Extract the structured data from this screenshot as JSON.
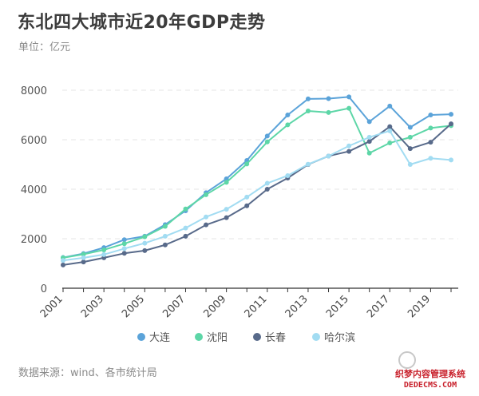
{
  "header": {
    "title": "东北四大城市近20年GDP走势",
    "subtitle": "单位：亿元"
  },
  "footer": {
    "source": "数据来源：wind、各市统计局"
  },
  "watermark": {
    "cn": "织梦内容管理系统",
    "en": "DEDECMS.COM"
  },
  "chart_data": {
    "type": "line",
    "x": [
      2001,
      2002,
      2003,
      2004,
      2005,
      2006,
      2007,
      2008,
      2009,
      2010,
      2011,
      2012,
      2013,
      2014,
      2015,
      2016,
      2017,
      2018,
      2019,
      2020
    ],
    "x_tick_labels": [
      "2001",
      "2003",
      "2005",
      "2007",
      "2009",
      "2011",
      "2013",
      "2015",
      "2017",
      "2019"
    ],
    "ylim": [
      0,
      8000
    ],
    "y_ticks": [
      "0",
      "2000",
      "4000",
      "6000",
      "8000"
    ],
    "grid": true,
    "legend_position": "bottom",
    "series": [
      {
        "name": "大连",
        "color": "#5ba3d9",
        "values": [
          1240,
          1400,
          1640,
          1960,
          2100,
          2570,
          3130,
          3860,
          4420,
          5160,
          6150,
          7000,
          7650,
          7660,
          7730,
          6730,
          7360,
          6500,
          7000,
          7030
        ]
      },
      {
        "name": "沈阳",
        "color": "#5dd6a7",
        "values": [
          1230,
          1370,
          1550,
          1800,
          2080,
          2500,
          3200,
          3780,
          4280,
          5020,
          5910,
          6600,
          7160,
          7100,
          7270,
          5460,
          5870,
          6100,
          6470,
          6570
        ]
      },
      {
        "name": "长春",
        "color": "#586a8a",
        "values": [
          940,
          1060,
          1230,
          1410,
          1520,
          1750,
          2100,
          2560,
          2850,
          3330,
          4000,
          4450,
          5000,
          5340,
          5530,
          5930,
          6530,
          5640,
          5900,
          6640
        ]
      },
      {
        "name": "哈尔滨",
        "color": "#a2dcf2",
        "values": [
          1120,
          1230,
          1360,
          1600,
          1820,
          2100,
          2430,
          2880,
          3190,
          3680,
          4240,
          4550,
          5010,
          5340,
          5750,
          6100,
          6360,
          5000,
          5250,
          5180
        ]
      }
    ]
  }
}
